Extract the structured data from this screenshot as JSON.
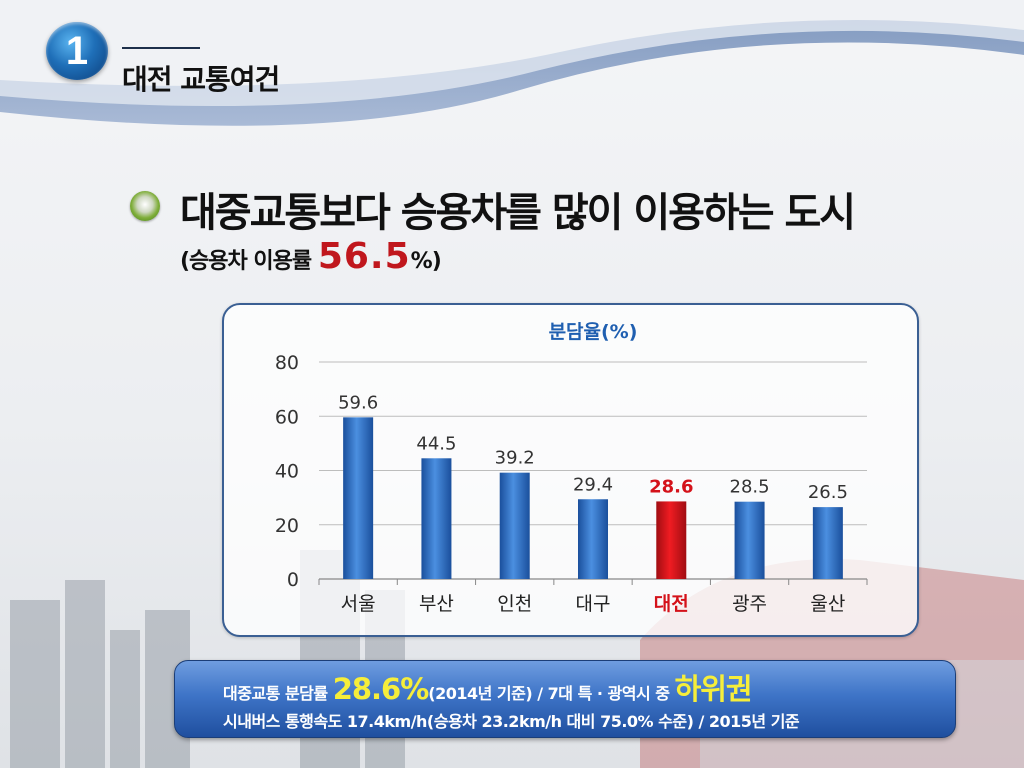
{
  "header": {
    "badge_number": "1",
    "section_title": "대전 교통여건"
  },
  "headline": {
    "main": "대중교통보다 승용차를 많이 이용하는 도시",
    "sub_prefix": "(승용차 이용률 ",
    "sub_value": "56.5",
    "sub_suffix": "%)"
  },
  "chart_data": {
    "type": "bar",
    "title": "분담율(%)",
    "categories": [
      "서울",
      "부산",
      "인천",
      "대구",
      "대전",
      "광주",
      "울산"
    ],
    "values": [
      59.6,
      44.5,
      39.2,
      29.4,
      28.6,
      28.5,
      26.5
    ],
    "value_labels": [
      "59.6",
      "44.5",
      "39.2",
      "29.4",
      "28.6",
      "28.5",
      "26.5"
    ],
    "highlight_index": 4,
    "ylim": [
      0,
      80
    ],
    "yticks": [
      0,
      20,
      40,
      60,
      80
    ],
    "ytick_labels": [
      "0",
      "20",
      "40",
      "60",
      "80"
    ],
    "grid": true,
    "colors": {
      "bar": "#2f6fc4",
      "highlight": "#d4121a",
      "title": "#1f5fb0",
      "grid": "#bdbdbd"
    }
  },
  "summary": {
    "line1_prefix": "대중교통 분담률 ",
    "line1_value": "28.6%",
    "line1_middle": "(2014년 기준) / 7대 특 · 광역시 중 ",
    "line1_highlight": "하위권",
    "line2": "시내버스 통행속도 17.4km/h(승용차 23.2km/h 대비 75.0% 수준) / 2015년 기준"
  }
}
